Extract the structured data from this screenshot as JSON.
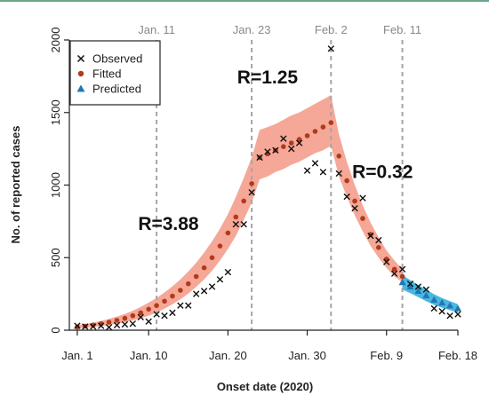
{
  "chart_data": {
    "type": "scatter",
    "xlabel": "Onset date (2020)",
    "ylabel": "No. of reported cases",
    "xlim": [
      0,
      49
    ],
    "ylim": [
      0,
      2000
    ],
    "x_ticks": [
      {
        "day": 1,
        "label": "Jan. 1"
      },
      {
        "day": 10,
        "label": "Jan. 10"
      },
      {
        "day": 20,
        "label": "Jan. 20"
      },
      {
        "day": 30,
        "label": "Jan. 30"
      },
      {
        "day": 40,
        "label": "Feb. 9"
      },
      {
        "day": 49,
        "label": "Feb. 18"
      }
    ],
    "y_ticks": [
      0,
      500,
      1000,
      1500,
      2000
    ],
    "top_markers": [
      {
        "day": 11,
        "label": "Jan. 11"
      },
      {
        "day": 23,
        "label": "Jan. 23"
      },
      {
        "day": 33,
        "label": "Feb. 2"
      },
      {
        "day": 42,
        "label": "Feb. 11"
      }
    ],
    "phase_labels": [
      {
        "text": "R=3.88",
        "day": 12.5,
        "cases": 690
      },
      {
        "text": "R=1.25",
        "day": 25,
        "cases": 1700
      },
      {
        "text": "R=0.32",
        "day": 39.5,
        "cases": 1050
      }
    ],
    "legend": {
      "position": "top-left",
      "items": [
        {
          "label": "Observed",
          "marker": "x",
          "color": "#111111"
        },
        {
          "label": "Fitted",
          "marker": "circle",
          "color": "#b23a1a"
        },
        {
          "label": "Predicted",
          "marker": "triangle",
          "color": "#1f77b4"
        }
      ]
    },
    "colors": {
      "fitted_band": "#f5a898",
      "predicted_band": "#49b7e0",
      "fitted": "#b23a1a",
      "predicted": "#1f77b4",
      "observed": "#111111",
      "marker_line": "#a6a6a6"
    },
    "series": [
      {
        "name": "Observed",
        "x": [
          1,
          2,
          3,
          4,
          5,
          6,
          7,
          8,
          9,
          10,
          11,
          12,
          13,
          14,
          15,
          16,
          17,
          18,
          19,
          20,
          21,
          22,
          23,
          24,
          25,
          26,
          27,
          28,
          29,
          30,
          31,
          32,
          33,
          34,
          35,
          36,
          37,
          38,
          39,
          40,
          41,
          42,
          43,
          44,
          45,
          46,
          47,
          48,
          49
        ],
        "y": [
          30,
          25,
          25,
          30,
          20,
          35,
          40,
          45,
          90,
          60,
          110,
          100,
          120,
          170,
          170,
          250,
          270,
          300,
          350,
          400,
          730,
          730,
          950,
          1190,
          1230,
          1240,
          1320,
          1250,
          1290,
          1100,
          1150,
          1090,
          1940,
          1080,
          920,
          840,
          910,
          650,
          620,
          470,
          390,
          420,
          320,
          300,
          280,
          150,
          130,
          100,
          110
        ]
      },
      {
        "name": "Fitted",
        "x": [
          1,
          2,
          3,
          4,
          5,
          6,
          7,
          8,
          9,
          10,
          11,
          12,
          13,
          14,
          15,
          16,
          17,
          18,
          19,
          20,
          21,
          22,
          23,
          24,
          25,
          26,
          27,
          28,
          29,
          30,
          31,
          32,
          33,
          34,
          35,
          36,
          37,
          38,
          39,
          40,
          41,
          42
        ],
        "y": [
          22,
          28,
          36,
          45,
          55,
          68,
          82,
          100,
          120,
          145,
          170,
          200,
          235,
          275,
          320,
          370,
          430,
          500,
          580,
          670,
          780,
          890,
          1010,
          1190,
          1215,
          1240,
          1265,
          1290,
          1315,
          1340,
          1370,
          1400,
          1430,
          1200,
          1030,
          890,
          770,
          660,
          570,
          490,
          420,
          370
        ],
        "band_low": [
          12,
          17,
          22,
          28,
          36,
          45,
          55,
          68,
          82,
          100,
          122,
          148,
          178,
          212,
          252,
          298,
          350,
          410,
          480,
          560,
          650,
          760,
          880,
          1040,
          1060,
          1090,
          1110,
          1140,
          1160,
          1190,
          1220,
          1240,
          1270,
          1060,
          920,
          790,
          680,
          580,
          500,
          430,
          370,
          330
        ],
        "band_high": [
          34,
          42,
          52,
          64,
          78,
          94,
          112,
          134,
          160,
          190,
          222,
          260,
          302,
          350,
          405,
          465,
          535,
          612,
          700,
          800,
          920,
          1050,
          1190,
          1380,
          1400,
          1420,
          1450,
          1480,
          1500,
          1530,
          1560,
          1590,
          1620,
          1350,
          1160,
          1000,
          860,
          740,
          640,
          550,
          480,
          420
        ]
      },
      {
        "name": "Predicted",
        "x": [
          42,
          43,
          44,
          45,
          46,
          47,
          48,
          49
        ],
        "y": [
          330,
          300,
          270,
          240,
          210,
          190,
          170,
          150
        ],
        "band_low": [
          280,
          255,
          228,
          200,
          175,
          155,
          138,
          120
        ],
        "band_high": [
          380,
          345,
          312,
          280,
          248,
          222,
          200,
          180
        ]
      }
    ]
  }
}
